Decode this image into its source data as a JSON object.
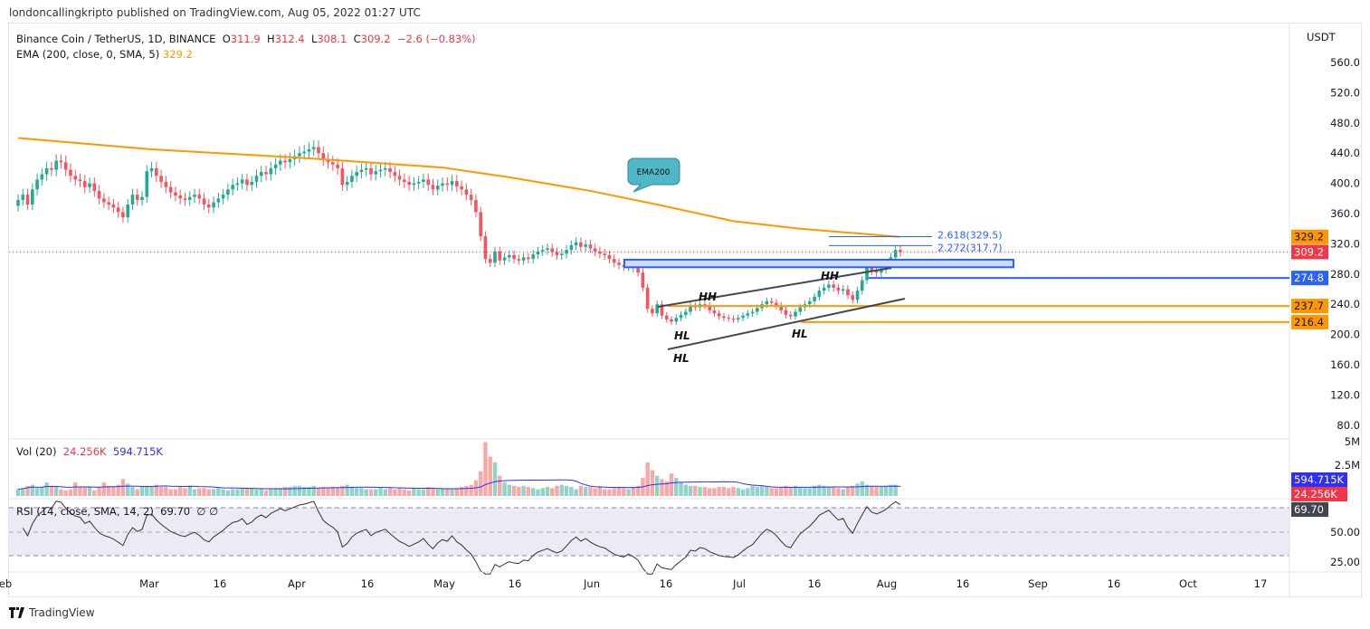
{
  "publisher_line": "londoncallingkripto published on TradingView.com, Aug 05, 2022 01:27 UTC",
  "legend": {
    "symbol": "Binance Coin / TetherUS, 1D, BINANCE",
    "o_label": "O",
    "o": "311.9",
    "h_label": "H",
    "h": "312.4",
    "l_label": "L",
    "l": "308.1",
    "c_label": "C",
    "c": "309.2",
    "change": "−2.6 (−0.83%)",
    "ema_label": "EMA (200, close, 0, SMA, 5)",
    "ema_value": "329.2"
  },
  "volume_legend": {
    "label": "Vol (20)",
    "value": "24.256K",
    "ma": "594.715K"
  },
  "rsi_legend": {
    "label": "RSI (14, close, SMA, 14, 2)",
    "value": "69.70",
    "extra": "∅ ∅"
  },
  "footer": {
    "brand": "TradingView"
  },
  "colors": {
    "up": "#22ab94",
    "down": "#f7525f",
    "ema": "#ff9800",
    "fib": "#2962ff",
    "zone": "#2962ff",
    "support": "#ff9800",
    "rsi": "#333333"
  },
  "chart_data": {
    "type": "candlestick",
    "currency": "USDT",
    "start_date": "2022-02-01",
    "closes": [
      378,
      385,
      372,
      392,
      405,
      412,
      420,
      418,
      430,
      428,
      418,
      410,
      405,
      403,
      395,
      400,
      390,
      380,
      375,
      372,
      368,
      362,
      355,
      372,
      385,
      378,
      382,
      416,
      420,
      410,
      402,
      395,
      388,
      384,
      380,
      378,
      382,
      385,
      380,
      372,
      368,
      375,
      380,
      385,
      392,
      398,
      400,
      405,
      398,
      402,
      410,
      415,
      412,
      420,
      425,
      430,
      428,
      432,
      436,
      440,
      442,
      445,
      448,
      440,
      432,
      428,
      425,
      420,
      398,
      402,
      410,
      415,
      418,
      420,
      412,
      416,
      418,
      420,
      415,
      410,
      405,
      402,
      398,
      400,
      402,
      405,
      398,
      392,
      397,
      400,
      398,
      403,
      396,
      392,
      385,
      378,
      362,
      330,
      300,
      295,
      310,
      298,
      302,
      305,
      300,
      298,
      302,
      300,
      306,
      310,
      312,
      314,
      309,
      305,
      307,
      312,
      318,
      322,
      316,
      319,
      314,
      310,
      307,
      305,
      300,
      295,
      292,
      290,
      292,
      288,
      282,
      262,
      234,
      228,
      240,
      225,
      220,
      217,
      222,
      226,
      230,
      238,
      236,
      240,
      238,
      232,
      228,
      224,
      222,
      221,
      220,
      222,
      225,
      228,
      230,
      235,
      240,
      244,
      242,
      238,
      232,
      226,
      224,
      230,
      236,
      240,
      244,
      250,
      258,
      262,
      266,
      262,
      258,
      260,
      252,
      246,
      258,
      272,
      290,
      284,
      282,
      286,
      292,
      302,
      311.9,
      309.2
    ],
    "volume_millions": [
      0.6,
      0.7,
      0.9,
      1.0,
      0.7,
      0.8,
      1.2,
      0.9,
      0.8,
      0.6,
      0.5,
      0.6,
      1.2,
      0.8,
      0.8,
      0.8,
      0.5,
      0.8,
      1.2,
      0.9,
      0.8,
      1.0,
      1.5,
      1.1,
      0.8,
      0.6,
      0.8,
      0.9,
      0.8,
      1.0,
      0.8,
      0.8,
      0.6,
      0.6,
      0.8,
      0.7,
      0.9,
      0.6,
      0.7,
      0.7,
      0.6,
      0.6,
      0.7,
      0.6,
      0.5,
      0.6,
      0.6,
      0.7,
      0.7,
      0.7,
      0.6,
      0.6,
      0.5,
      0.6,
      0.7,
      0.7,
      0.8,
      0.8,
      0.9,
      0.9,
      0.8,
      0.8,
      0.9,
      0.7,
      0.8,
      0.7,
      0.8,
      0.7,
      0.9,
      1.0,
      0.8,
      0.7,
      0.7,
      0.6,
      0.6,
      0.6,
      0.7,
      0.6,
      0.7,
      0.6,
      0.7,
      0.6,
      0.5,
      0.7,
      0.6,
      0.6,
      0.8,
      0.7,
      0.6,
      0.7,
      0.7,
      0.6,
      0.7,
      0.8,
      0.9,
      1.0,
      1.4,
      2.2,
      4.8,
      3.5,
      3.0,
      1.8,
      1.2,
      1.0,
      0.9,
      0.8,
      0.9,
      0.8,
      0.7,
      0.6,
      0.7,
      0.8,
      0.7,
      0.9,
      1.0,
      0.9,
      0.8,
      0.6,
      0.9,
      0.8,
      0.8,
      0.7,
      0.8,
      0.6,
      0.6,
      0.7,
      0.8,
      0.7,
      0.6,
      0.8,
      0.9,
      1.6,
      3.0,
      2.3,
      1.8,
      1.5,
      1.3,
      2.0,
      1.6,
      1.2,
      1.0,
      0.9,
      0.9,
      0.8,
      0.8,
      0.7,
      0.7,
      0.8,
      0.8,
      0.7,
      0.8,
      0.7,
      0.6,
      0.7,
      0.9,
      0.8,
      0.9,
      0.8,
      0.7,
      0.7,
      0.8,
      0.9,
      0.8,
      0.9,
      0.8,
      0.7,
      0.7,
      0.9,
      1.0,
      0.9,
      0.8,
      0.8,
      0.7,
      0.6,
      0.8,
      0.9,
      1.1,
      1.3,
      1.0,
      0.9,
      0.8,
      0.8,
      0.9,
      1.0,
      1.0,
      0.02
    ],
    "ema200": [
      [
        "2022-02-01",
        460
      ],
      [
        "2022-03-01",
        445
      ],
      [
        "2022-04-01",
        434
      ],
      [
        "2022-05-01",
        421
      ],
      [
        "2022-05-15",
        408
      ],
      [
        "2022-06-01",
        390
      ],
      [
        "2022-06-15",
        372
      ],
      [
        "2022-07-01",
        350
      ],
      [
        "2022-07-15",
        340
      ],
      [
        "2022-08-05",
        329.2
      ]
    ],
    "price_ticks": [
      "560.0",
      "520.0",
      "480.0",
      "440.0",
      "400.0",
      "360.0",
      "320.0",
      "280.0",
      "240.0",
      "200.0",
      "160.0",
      "120.0",
      "80.0"
    ],
    "volume_ticks": [
      "5M",
      "2.5M"
    ],
    "rsi_ticks": [
      "50.00",
      "25.00"
    ],
    "time_ticks": [
      "Feb",
      "Mar",
      "16",
      "Apr",
      "16",
      "May",
      "16",
      "Jun",
      "16",
      "Jul",
      "16",
      "Aug",
      "16",
      "Sep",
      "16",
      "Oct",
      "17"
    ],
    "price_labels": {
      "ema": "329.2",
      "last": "309.2",
      "resistance": "274.8",
      "support1": "237.7",
      "support2": "216.4",
      "vol_ma": "594.715K",
      "vol": "24.256K",
      "rsi": "69.70"
    },
    "fib_levels": [
      {
        "label": "2.618(329.5)",
        "price": 329.5
      },
      {
        "label": "2.272(317.7)",
        "price": 317.7
      }
    ],
    "zone": {
      "top": 299,
      "bottom": 289
    },
    "horizontal_lines": {
      "resistance": 274.8,
      "support1": 237.7,
      "support2": 216.4
    },
    "annotations": {
      "callout": "EMA200",
      "hh": "HH",
      "hl": "HL"
    }
  }
}
